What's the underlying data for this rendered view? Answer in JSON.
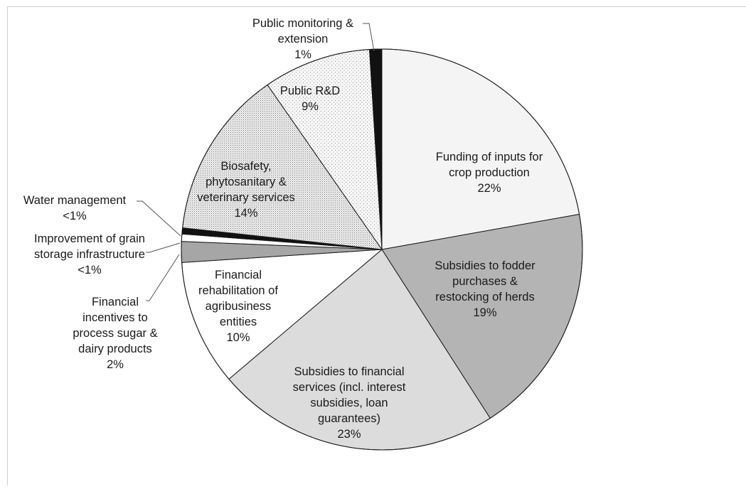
{
  "chart_data": {
    "type": "pie",
    "title": "",
    "start_angle_deg": 0,
    "direction": "clockwise",
    "slices": [
      {
        "label_lines": [
          "Funding of inputs for",
          "crop production",
          "22%"
        ],
        "value": 22.5,
        "fill": "#f4f4f4",
        "pattern": "none"
      },
      {
        "label_lines": [
          "Subsidies to fodder",
          "purchases &",
          "restocking of herds",
          "19%"
        ],
        "value": 19.0,
        "fill": "#b4b4b4",
        "pattern": "none"
      },
      {
        "label_lines": [
          "Subsidies to financial",
          "services (incl. interest",
          "subsidies, loan",
          "guarantees)",
          "23%"
        ],
        "value": 23.2,
        "fill": "#dcdcdc",
        "pattern": "none"
      },
      {
        "label_lines": [
          "Financial",
          "rehabilitation of",
          "agribusiness",
          "entities",
          "10%"
        ],
        "value": 10.3,
        "fill": "#ffffff",
        "pattern": "none"
      },
      {
        "label_lines": [
          "Financial",
          "incentives to",
          "process sugar &",
          "dairy products",
          "2%"
        ],
        "value": 1.7,
        "fill": "#a6a6a6",
        "pattern": "none"
      },
      {
        "label_lines": [
          "Improvement of grain",
          "storage infrastructure",
          "<1%"
        ],
        "value": 0.6,
        "fill": "#ffffff",
        "pattern": "none"
      },
      {
        "label_lines": [
          "Water management",
          "<1%"
        ],
        "value": 0.5,
        "fill": "#111111",
        "pattern": "none"
      },
      {
        "label_lines": [
          "Biosafety,",
          "phytosanitary &",
          "veterinary services",
          "14%"
        ],
        "value": 13.8,
        "fill": "#ececec",
        "pattern": "fine-dots"
      },
      {
        "label_lines": [
          "Public R&D",
          "9%"
        ],
        "value": 8.8,
        "fill": "#f4f4f4",
        "pattern": "sparse-dots"
      },
      {
        "label_lines": [
          "Public monitoring &",
          "extension",
          "1%"
        ],
        "value": 1.0,
        "fill": "#111111",
        "pattern": "none"
      }
    ]
  }
}
